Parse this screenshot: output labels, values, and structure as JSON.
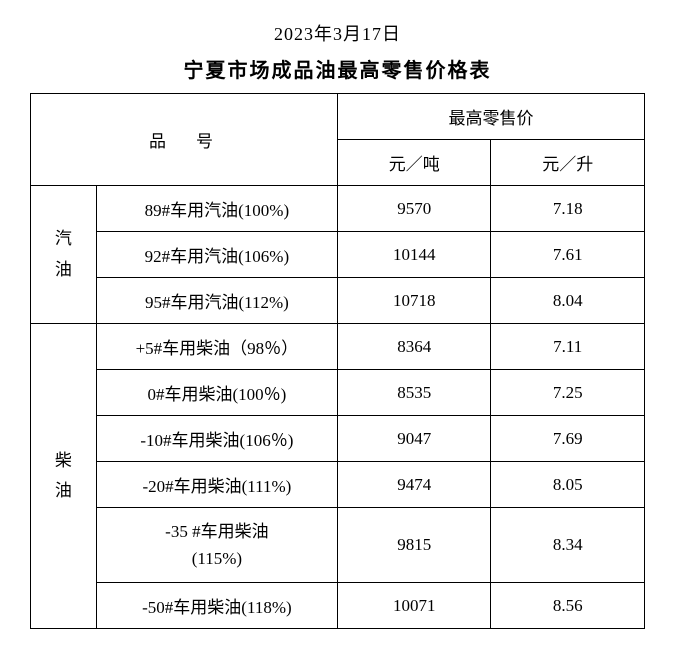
{
  "date": "2023年3月17日",
  "title": "宁夏市场成品油最高零售价格表",
  "headers": {
    "product": "品号",
    "maxPrice": "最高零售价",
    "perTon": "元／吨",
    "perLiter": "元／升"
  },
  "categories": {
    "gasoline": "汽油",
    "diesel": "柴油"
  },
  "gasoline": [
    {
      "name": "89#车用汽油(100%)",
      "ton": "9570",
      "liter": "7.18"
    },
    {
      "name": "92#车用汽油(106%)",
      "ton": "10144",
      "liter": "7.61"
    },
    {
      "name": "95#车用汽油(112%)",
      "ton": "10718",
      "liter": "8.04"
    }
  ],
  "diesel": [
    {
      "name": "+5#车用柴油（98％）",
      "ton": "8364",
      "liter": "7.11"
    },
    {
      "name": "0#车用柴油(100％)",
      "ton": "8535",
      "liter": "7.25"
    },
    {
      "name": "-10#车用柴油(106％)",
      "ton": "9047",
      "liter": "7.69"
    },
    {
      "name": "-20#车用柴油(111%)",
      "ton": "9474",
      "liter": "8.05"
    },
    {
      "name_line1": "-35 #车用柴油",
      "name_line2": "(115%)",
      "ton": "9815",
      "liter": "8.34"
    },
    {
      "name": "-50#车用柴油(118%)",
      "ton": "10071",
      "liter": "8.56"
    }
  ]
}
